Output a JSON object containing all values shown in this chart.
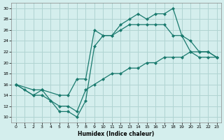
{
  "xlabel": "Humidex (Indice chaleur)",
  "xlim": [
    -0.5,
    23.5
  ],
  "ylim": [
    9,
    31
  ],
  "yticks": [
    10,
    12,
    14,
    16,
    18,
    20,
    22,
    24,
    26,
    28,
    30
  ],
  "xticks": [
    0,
    1,
    2,
    3,
    4,
    5,
    6,
    7,
    8,
    9,
    10,
    11,
    12,
    13,
    14,
    15,
    16,
    17,
    18,
    19,
    20,
    21,
    22,
    23
  ],
  "bg_color": "#d4eeed",
  "grid_color": "#b0d4d2",
  "line_color": "#1a7a6e",
  "line1_x": [
    0,
    1,
    2,
    3,
    4,
    5,
    6,
    7,
    8,
    9,
    10,
    11,
    12,
    13,
    14,
    15,
    16,
    17,
    18,
    19,
    20,
    21,
    22,
    23
  ],
  "line1_y": [
    16,
    15,
    14,
    14,
    13,
    11,
    11,
    10,
    13,
    23,
    25,
    25,
    27,
    28,
    29,
    28,
    29,
    29,
    30,
    25,
    22,
    22,
    22,
    21
  ],
  "line2_x": [
    0,
    2,
    3,
    5,
    6,
    7,
    8,
    9,
    10,
    11,
    12,
    13,
    14,
    15,
    16,
    17,
    18,
    19,
    20,
    21,
    22,
    23
  ],
  "line2_y": [
    16,
    15,
    15,
    14,
    14,
    17,
    17,
    26,
    25,
    25,
    26,
    27,
    27,
    27,
    27,
    27,
    25,
    25,
    24,
    22,
    22,
    21
  ],
  "line3_x": [
    0,
    2,
    3,
    4,
    5,
    6,
    7,
    8,
    9,
    10,
    11,
    12,
    13,
    14,
    15,
    16,
    17,
    18,
    19,
    20,
    21,
    22,
    23
  ],
  "line3_y": [
    16,
    14,
    15,
    13,
    12,
    12,
    11,
    15,
    16,
    17,
    18,
    18,
    19,
    19,
    20,
    20,
    21,
    21,
    21,
    22,
    21,
    21,
    21
  ]
}
